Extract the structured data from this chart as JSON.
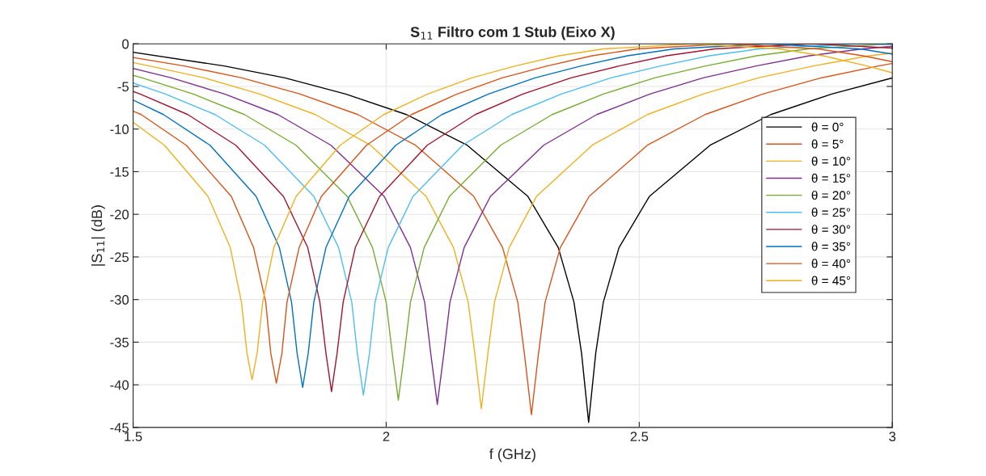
{
  "chart_data": {
    "type": "line",
    "title": "S$_{11}$ Filtro com 1 Stub (Eixo X)",
    "xlabel": "f (GHz)",
    "ylabel": "|S$_{11}$| (dB)",
    "xlim": [
      1.5,
      3
    ],
    "xticks": [
      1.5,
      2,
      2.5,
      3
    ],
    "ylim": [
      -45,
      0
    ],
    "yticks": [
      -45,
      -40,
      -35,
      -30,
      -25,
      -20,
      -15,
      -10,
      -5,
      0
    ],
    "grid": true,
    "legend": "right",
    "line_style": "solid",
    "marker": "none",
    "series": [
      {
        "name": "θ = 0°",
        "color": "#000000",
        "x": [
          1.5,
          1.68,
          1.8,
          1.92,
          2.04,
          2.16,
          2.28,
          2.34,
          2.371,
          2.386,
          2.4,
          2.414,
          2.429,
          2.46,
          2.52,
          2.64,
          2.76,
          2.88,
          3
        ],
        "values": [
          -1.0,
          -2.6,
          -4.0,
          -5.9,
          -8.3,
          -11.9,
          -17.9,
          -23.9,
          -30.3,
          -36.3,
          -44.4,
          -36.3,
          -30.3,
          -23.9,
          -17.9,
          -11.9,
          -8.3,
          -5.9,
          -4.0
        ]
      },
      {
        "name": "θ = 5°",
        "color": "#d95319",
        "x": [
          1.5,
          1.601,
          1.715,
          1.83,
          1.944,
          2.058,
          2.173,
          2.23,
          2.26,
          2.273,
          2.287,
          2.301,
          2.314,
          2.344,
          2.401,
          2.516,
          2.63,
          2.744,
          2.859,
          2.973,
          3
        ],
        "values": [
          -1.6,
          -2.6,
          -4.0,
          -5.9,
          -8.3,
          -11.9,
          -17.9,
          -23.9,
          -30.3,
          -36.3,
          -43.5,
          -36.3,
          -30.3,
          -23.9,
          -17.9,
          -11.9,
          -8.3,
          -5.9,
          -4.0,
          -2.6,
          -2.3
        ]
      },
      {
        "name": "θ = 10°",
        "color": "#edb120",
        "x": [
          1.5,
          1.532,
          1.641,
          1.75,
          1.86,
          1.969,
          2.079,
          2.133,
          2.162,
          2.175,
          2.188,
          2.201,
          2.214,
          2.243,
          2.297,
          2.407,
          2.516,
          2.626,
          2.735,
          2.844,
          2.954,
          3
        ],
        "values": [
          -2.2,
          -2.6,
          -4.0,
          -5.9,
          -8.3,
          -11.9,
          -17.9,
          -23.9,
          -30.3,
          -36.3,
          -42.8,
          -36.3,
          -30.3,
          -23.9,
          -17.9,
          -11.9,
          -8.3,
          -5.9,
          -4.0,
          -2.6,
          -1.4,
          -1.1
        ]
      },
      {
        "name": "θ = 15°",
        "color": "#7e2f8e",
        "x": [
          1.5,
          1.576,
          1.681,
          1.786,
          1.891,
          1.996,
          2.048,
          2.076,
          2.088,
          2.101,
          2.114,
          2.126,
          2.154,
          2.206,
          2.311,
          2.416,
          2.521,
          2.626,
          2.731,
          2.836,
          2.941,
          3
        ],
        "values": [
          -2.9,
          -4.0,
          -5.9,
          -8.3,
          -11.9,
          -17.9,
          -23.9,
          -30.3,
          -36.3,
          -42.3,
          -36.3,
          -30.3,
          -23.9,
          -17.9,
          -11.9,
          -8.3,
          -5.9,
          -4.0,
          -2.6,
          -1.4,
          -0.6,
          -0.3
        ]
      },
      {
        "name": "θ = 20°",
        "color": "#77ac30",
        "x": [
          1.5,
          1.518,
          1.619,
          1.72,
          1.822,
          1.923,
          1.973,
          2.0,
          2.012,
          2.024,
          2.036,
          2.048,
          2.075,
          2.125,
          2.226,
          2.328,
          2.429,
          2.53,
          2.631,
          2.732,
          2.834,
          3
        ],
        "values": [
          -3.7,
          -4.0,
          -5.9,
          -8.3,
          -11.9,
          -17.9,
          -23.9,
          -30.3,
          -36.3,
          -41.8,
          -36.3,
          -30.3,
          -23.9,
          -17.9,
          -11.9,
          -8.3,
          -5.9,
          -4.0,
          -2.6,
          -1.4,
          -0.6,
          0
        ]
      },
      {
        "name": "θ = 25°",
        "color": "#4dbeee",
        "x": [
          1.5,
          1.564,
          1.662,
          1.76,
          1.857,
          1.906,
          1.932,
          1.943,
          1.955,
          1.967,
          1.978,
          2.004,
          2.053,
          2.151,
          2.248,
          2.346,
          2.444,
          2.542,
          2.639,
          2.737,
          2.933,
          3
        ],
        "values": [
          -4.6,
          -5.9,
          -8.3,
          -11.9,
          -17.9,
          -23.9,
          -30.3,
          -36.3,
          -41.2,
          -36.3,
          -30.3,
          -23.9,
          -17.9,
          -11.9,
          -8.3,
          -5.9,
          -4.0,
          -2.6,
          -1.4,
          -0.6,
          0,
          -0.1
        ]
      },
      {
        "name": "θ = 30°",
        "color": "#a2142f",
        "x": [
          1.5,
          1.514,
          1.608,
          1.703,
          1.797,
          1.845,
          1.869,
          1.881,
          1.892,
          1.903,
          1.915,
          1.939,
          1.987,
          2.081,
          2.176,
          2.27,
          2.365,
          2.46,
          2.554,
          2.649,
          2.838,
          3
        ],
        "values": [
          -5.6,
          -5.9,
          -8.3,
          -11.9,
          -17.9,
          -23.9,
          -30.3,
          -36.3,
          -40.8,
          -36.3,
          -30.3,
          -23.9,
          -17.9,
          -11.9,
          -8.3,
          -5.9,
          -4.0,
          -2.6,
          -1.4,
          -0.6,
          0,
          -0.5
        ]
      },
      {
        "name": "θ = 35°",
        "color": "#0072bd",
        "x": [
          1.5,
          1.56,
          1.652,
          1.743,
          1.789,
          1.813,
          1.824,
          1.835,
          1.846,
          1.857,
          1.881,
          1.927,
          2.019,
          2.11,
          2.202,
          2.294,
          2.385,
          2.477,
          2.569,
          2.753,
          2.936,
          3
        ],
        "values": [
          -6.6,
          -8.3,
          -11.9,
          -17.9,
          -23.9,
          -30.3,
          -36.3,
          -40.3,
          -36.3,
          -30.3,
          -23.9,
          -17.9,
          -11.9,
          -8.3,
          -5.9,
          -4.0,
          -2.6,
          -1.4,
          -0.6,
          0,
          -0.6,
          -1.2
        ]
      },
      {
        "name": "θ = 40°",
        "color": "#d95319",
        "x": [
          1.5,
          1.516,
          1.605,
          1.694,
          1.738,
          1.762,
          1.772,
          1.783,
          1.794,
          1.804,
          1.828,
          1.872,
          1.961,
          2.05,
          2.14,
          2.229,
          2.318,
          2.407,
          2.496,
          2.675,
          2.853,
          2.942,
          3
        ],
        "values": [
          -7.9,
          -8.3,
          -11.9,
          -17.9,
          -23.9,
          -30.3,
          -36.3,
          -39.8,
          -36.3,
          -30.3,
          -23.9,
          -17.9,
          -11.9,
          -8.3,
          -5.9,
          -4.0,
          -2.6,
          -1.4,
          -0.6,
          0,
          -0.6,
          -1.4,
          -2.1
        ]
      },
      {
        "name": "θ = 45°",
        "color": "#edb120",
        "x": [
          1.5,
          1.562,
          1.648,
          1.692,
          1.714,
          1.725,
          1.735,
          1.745,
          1.756,
          1.778,
          1.822,
          1.909,
          1.995,
          2.082,
          2.169,
          2.255,
          2.342,
          2.429,
          2.603,
          2.776,
          2.863,
          2.95,
          3
        ],
        "values": [
          -9.2,
          -11.9,
          -17.9,
          -23.9,
          -30.3,
          -36.3,
          -39.4,
          -36.3,
          -30.3,
          -23.9,
          -17.9,
          -11.9,
          -8.3,
          -5.9,
          -4.0,
          -2.6,
          -1.4,
          -0.6,
          0,
          -0.6,
          -1.4,
          -2.6,
          -3.4
        ]
      }
    ]
  }
}
